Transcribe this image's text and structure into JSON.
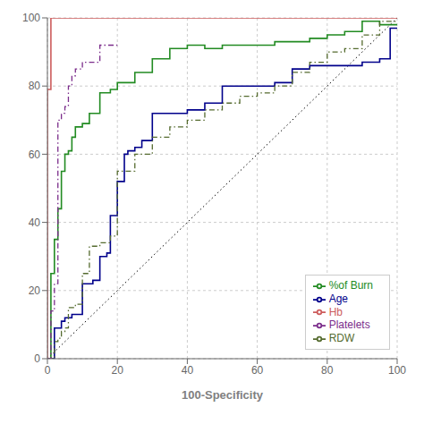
{
  "chart_data": {
    "type": "line",
    "xlabel": "100-Specificity",
    "xlim": [
      0,
      100
    ],
    "ylim": [
      0,
      100
    ],
    "xticks": [
      0,
      20,
      40,
      60,
      80,
      100
    ],
    "yticks": [
      0,
      20,
      40,
      60,
      80,
      100
    ],
    "grid": true,
    "legend": "lower right",
    "reference_line": {
      "color": "#000000",
      "line_style": "dotted",
      "x": [
        0,
        100
      ],
      "y": [
        0,
        100
      ]
    },
    "series": [
      {
        "name": "Age",
        "color": "#00008b",
        "line_style": "solid",
        "x": [
          0,
          2,
          2,
          4,
          4,
          5,
          5,
          7,
          7,
          10,
          10,
          13,
          13,
          15,
          15,
          17,
          17,
          18,
          18,
          20,
          20,
          22,
          22,
          23,
          23,
          25,
          25,
          27,
          27,
          30,
          30,
          35,
          35,
          40,
          40,
          45,
          45,
          50,
          50,
          55,
          55,
          60,
          60,
          65,
          65,
          70,
          70,
          75,
          75,
          80,
          80,
          85,
          85,
          90,
          90,
          95,
          95,
          98,
          98,
          100
        ],
        "y": [
          0,
          0,
          9,
          9,
          11,
          11,
          12,
          12,
          13,
          13,
          22,
          22,
          23,
          23,
          30,
          30,
          31,
          31,
          42,
          42,
          52,
          52,
          60,
          60,
          61,
          61,
          62,
          62,
          64,
          64,
          72,
          72,
          72,
          72,
          73,
          73,
          75,
          75,
          80,
          80,
          80,
          80,
          80,
          80,
          81,
          81,
          85,
          85,
          86,
          86,
          86,
          86,
          86,
          86,
          87,
          87,
          88,
          88,
          97,
          97
        ]
      },
      {
        "name": "%of Burn",
        "color": "#228b22",
        "line_style": "solid",
        "x": [
          0,
          1,
          1,
          2,
          2,
          3,
          3,
          4,
          4,
          5,
          5,
          6,
          6,
          7,
          7,
          8,
          8,
          10,
          10,
          12,
          12,
          15,
          15,
          18,
          18,
          20,
          20,
          25,
          25,
          30,
          30,
          35,
          35,
          40,
          40,
          45,
          45,
          50,
          50,
          55,
          55,
          60,
          60,
          65,
          65,
          70,
          70,
          75,
          75,
          80,
          80,
          85,
          85,
          90,
          90,
          95,
          95,
          100
        ],
        "y": [
          0,
          0,
          25,
          25,
          35,
          35,
          44,
          44,
          55,
          55,
          60,
          60,
          61,
          61,
          65,
          65,
          68,
          68,
          69,
          69,
          72,
          72,
          78,
          78,
          79,
          79,
          81,
          81,
          84,
          84,
          88,
          88,
          91,
          91,
          92,
          92,
          91,
          91,
          92,
          92,
          92,
          92,
          92,
          92,
          93,
          93,
          93,
          93,
          94,
          94,
          95,
          95,
          96,
          96,
          99,
          99,
          98,
          98
        ]
      },
      {
        "name": "Hb",
        "color": "#cd5c5c",
        "line_style": "solid",
        "x": [
          0,
          0,
          1,
          1,
          100
        ],
        "y": [
          0,
          79,
          79,
          100,
          100
        ]
      },
      {
        "name": "RDW",
        "color": "#556b2f",
        "line_style": "dashdot",
        "x": [
          0,
          2,
          2,
          3,
          3,
          4,
          4,
          5,
          5,
          6,
          6,
          8,
          8,
          10,
          10,
          12,
          12,
          15,
          15,
          18,
          18,
          20,
          20,
          25,
          25,
          30,
          30,
          35,
          35,
          40,
          40,
          45,
          45,
          50,
          50,
          55,
          55,
          60,
          60,
          65,
          65,
          70,
          70,
          75,
          75,
          80,
          80,
          85,
          85,
          90,
          90,
          95,
          95,
          100
        ],
        "y": [
          0,
          0,
          5,
          5,
          6,
          6,
          8,
          8,
          9,
          9,
          15,
          15,
          16,
          16,
          25,
          25,
          33,
          33,
          34,
          34,
          36,
          36,
          55,
          55,
          60,
          60,
          65,
          65,
          68,
          68,
          70,
          70,
          73,
          73,
          75,
          75,
          77,
          77,
          78,
          78,
          80,
          80,
          84,
          84,
          87,
          87,
          90,
          90,
          91,
          91,
          95,
          95,
          99,
          99
        ]
      },
      {
        "name": "Platelets",
        "color": "#7b2d8b",
        "line_style": "dashdot",
        "x": [
          0,
          1,
          1,
          2,
          2,
          3,
          3,
          4,
          4,
          5,
          5,
          6,
          6,
          7,
          7,
          8,
          8,
          10,
          10,
          15,
          15,
          20,
          20
        ],
        "y": [
          0,
          0,
          14,
          14,
          22,
          22,
          70,
          70,
          72,
          72,
          74,
          74,
          80,
          80,
          83,
          83,
          85,
          85,
          87,
          87,
          92,
          92,
          92
        ]
      }
    ]
  }
}
